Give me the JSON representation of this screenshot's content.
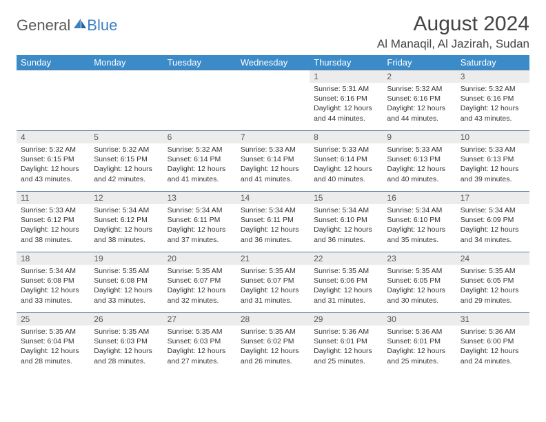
{
  "logo": {
    "part1": "General",
    "part2": "Blue"
  },
  "title": "August 2024",
  "location": "Al Manaqil, Al Jazirah, Sudan",
  "colors": {
    "header_bg": "#3b8bc8",
    "header_text": "#ffffff",
    "daynum_bg": "#ececec",
    "row_border": "#5a7ca0",
    "logo_gray": "#5a5a5a",
    "logo_blue": "#3b7fc4"
  },
  "weekdays": [
    "Sunday",
    "Monday",
    "Tuesday",
    "Wednesday",
    "Thursday",
    "Friday",
    "Saturday"
  ],
  "first_weekday_index": 4,
  "days": [
    {
      "n": 1,
      "sunrise": "5:31 AM",
      "sunset": "6:16 PM",
      "daylight": "12 hours and 44 minutes."
    },
    {
      "n": 2,
      "sunrise": "5:32 AM",
      "sunset": "6:16 PM",
      "daylight": "12 hours and 44 minutes."
    },
    {
      "n": 3,
      "sunrise": "5:32 AM",
      "sunset": "6:16 PM",
      "daylight": "12 hours and 43 minutes."
    },
    {
      "n": 4,
      "sunrise": "5:32 AM",
      "sunset": "6:15 PM",
      "daylight": "12 hours and 43 minutes."
    },
    {
      "n": 5,
      "sunrise": "5:32 AM",
      "sunset": "6:15 PM",
      "daylight": "12 hours and 42 minutes."
    },
    {
      "n": 6,
      "sunrise": "5:32 AM",
      "sunset": "6:14 PM",
      "daylight": "12 hours and 41 minutes."
    },
    {
      "n": 7,
      "sunrise": "5:33 AM",
      "sunset": "6:14 PM",
      "daylight": "12 hours and 41 minutes."
    },
    {
      "n": 8,
      "sunrise": "5:33 AM",
      "sunset": "6:14 PM",
      "daylight": "12 hours and 40 minutes."
    },
    {
      "n": 9,
      "sunrise": "5:33 AM",
      "sunset": "6:13 PM",
      "daylight": "12 hours and 40 minutes."
    },
    {
      "n": 10,
      "sunrise": "5:33 AM",
      "sunset": "6:13 PM",
      "daylight": "12 hours and 39 minutes."
    },
    {
      "n": 11,
      "sunrise": "5:33 AM",
      "sunset": "6:12 PM",
      "daylight": "12 hours and 38 minutes."
    },
    {
      "n": 12,
      "sunrise": "5:34 AM",
      "sunset": "6:12 PM",
      "daylight": "12 hours and 38 minutes."
    },
    {
      "n": 13,
      "sunrise": "5:34 AM",
      "sunset": "6:11 PM",
      "daylight": "12 hours and 37 minutes."
    },
    {
      "n": 14,
      "sunrise": "5:34 AM",
      "sunset": "6:11 PM",
      "daylight": "12 hours and 36 minutes."
    },
    {
      "n": 15,
      "sunrise": "5:34 AM",
      "sunset": "6:10 PM",
      "daylight": "12 hours and 36 minutes."
    },
    {
      "n": 16,
      "sunrise": "5:34 AM",
      "sunset": "6:10 PM",
      "daylight": "12 hours and 35 minutes."
    },
    {
      "n": 17,
      "sunrise": "5:34 AM",
      "sunset": "6:09 PM",
      "daylight": "12 hours and 34 minutes."
    },
    {
      "n": 18,
      "sunrise": "5:34 AM",
      "sunset": "6:08 PM",
      "daylight": "12 hours and 33 minutes."
    },
    {
      "n": 19,
      "sunrise": "5:35 AM",
      "sunset": "6:08 PM",
      "daylight": "12 hours and 33 minutes."
    },
    {
      "n": 20,
      "sunrise": "5:35 AM",
      "sunset": "6:07 PM",
      "daylight": "12 hours and 32 minutes."
    },
    {
      "n": 21,
      "sunrise": "5:35 AM",
      "sunset": "6:07 PM",
      "daylight": "12 hours and 31 minutes."
    },
    {
      "n": 22,
      "sunrise": "5:35 AM",
      "sunset": "6:06 PM",
      "daylight": "12 hours and 31 minutes."
    },
    {
      "n": 23,
      "sunrise": "5:35 AM",
      "sunset": "6:05 PM",
      "daylight": "12 hours and 30 minutes."
    },
    {
      "n": 24,
      "sunrise": "5:35 AM",
      "sunset": "6:05 PM",
      "daylight": "12 hours and 29 minutes."
    },
    {
      "n": 25,
      "sunrise": "5:35 AM",
      "sunset": "6:04 PM",
      "daylight": "12 hours and 28 minutes."
    },
    {
      "n": 26,
      "sunrise": "5:35 AM",
      "sunset": "6:03 PM",
      "daylight": "12 hours and 28 minutes."
    },
    {
      "n": 27,
      "sunrise": "5:35 AM",
      "sunset": "6:03 PM",
      "daylight": "12 hours and 27 minutes."
    },
    {
      "n": 28,
      "sunrise": "5:35 AM",
      "sunset": "6:02 PM",
      "daylight": "12 hours and 26 minutes."
    },
    {
      "n": 29,
      "sunrise": "5:36 AM",
      "sunset": "6:01 PM",
      "daylight": "12 hours and 25 minutes."
    },
    {
      "n": 30,
      "sunrise": "5:36 AM",
      "sunset": "6:01 PM",
      "daylight": "12 hours and 25 minutes."
    },
    {
      "n": 31,
      "sunrise": "5:36 AM",
      "sunset": "6:00 PM",
      "daylight": "12 hours and 24 minutes."
    }
  ],
  "labels": {
    "sunrise": "Sunrise:",
    "sunset": "Sunset:",
    "daylight": "Daylight:"
  }
}
